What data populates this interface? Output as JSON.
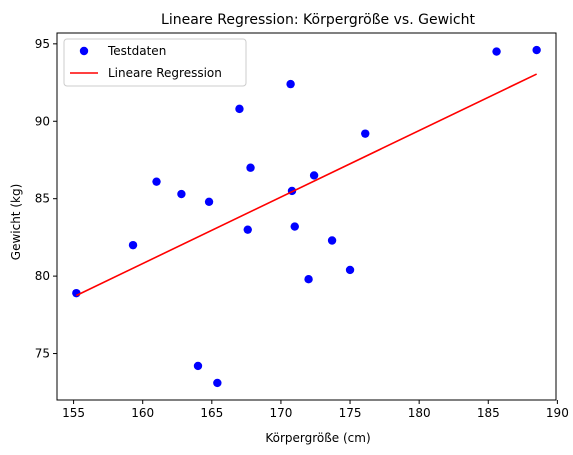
{
  "chart_data": {
    "type": "scatter",
    "title": "Lineare Regression: Körpergröße vs. Gewicht",
    "xlabel": "Körpergröße (cm)",
    "ylabel": "Gewicht (kg)",
    "xlim": [
      153.8,
      189.9
    ],
    "ylim": [
      72.0,
      95.7
    ],
    "xticks": [
      155,
      160,
      165,
      170,
      175,
      180,
      185,
      190
    ],
    "yticks": [
      75,
      80,
      85,
      90,
      95
    ],
    "grid": false,
    "legend_position": "top-left",
    "series": [
      {
        "name": "Testdaten",
        "type": "scatter",
        "color": "#0000ff",
        "points": [
          {
            "x": 155.2,
            "y": 78.9
          },
          {
            "x": 159.3,
            "y": 82.0
          },
          {
            "x": 161.0,
            "y": 86.1
          },
          {
            "x": 162.8,
            "y": 85.3
          },
          {
            "x": 164.0,
            "y": 74.2
          },
          {
            "x": 164.8,
            "y": 84.8
          },
          {
            "x": 165.4,
            "y": 73.1
          },
          {
            "x": 167.0,
            "y": 90.8
          },
          {
            "x": 167.6,
            "y": 83.0
          },
          {
            "x": 167.8,
            "y": 87.0
          },
          {
            "x": 170.7,
            "y": 92.4
          },
          {
            "x": 170.8,
            "y": 85.5
          },
          {
            "x": 171.0,
            "y": 83.2
          },
          {
            "x": 172.0,
            "y": 79.8
          },
          {
            "x": 172.4,
            "y": 86.5
          },
          {
            "x": 173.7,
            "y": 82.3
          },
          {
            "x": 175.0,
            "y": 80.4
          },
          {
            "x": 176.1,
            "y": 89.2
          },
          {
            "x": 185.6,
            "y": 94.5
          },
          {
            "x": 188.5,
            "y": 94.6
          }
        ]
      },
      {
        "name": "Lineare Regression",
        "type": "line",
        "color": "#ff0000",
        "points": [
          {
            "x": 155.2,
            "y": 78.75
          },
          {
            "x": 188.5,
            "y": 93.05
          }
        ]
      }
    ]
  }
}
